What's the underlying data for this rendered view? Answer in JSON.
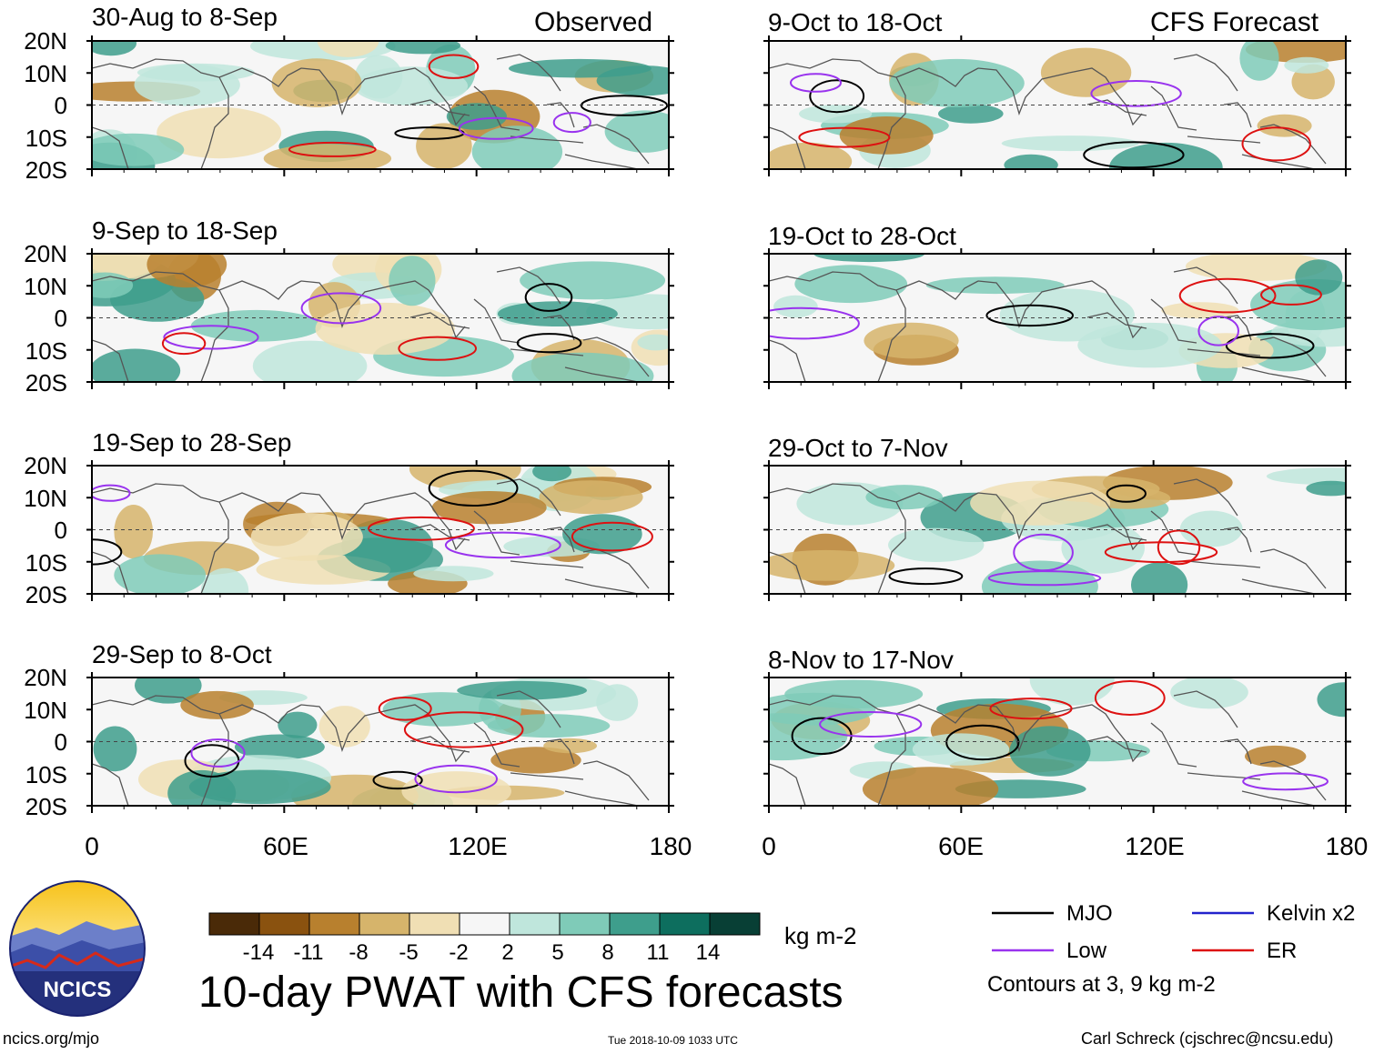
{
  "observed_label": "Observed",
  "forecast_label": "CFS Forecast",
  "panels": [
    {
      "title": "30-Aug to 8-Sep",
      "kind": "observed"
    },
    {
      "title": "9-Sep to 18-Sep",
      "kind": "observed"
    },
    {
      "title": "19-Sep to 28-Sep",
      "kind": "observed"
    },
    {
      "title": "29-Sep to 8-Oct",
      "kind": "observed"
    },
    {
      "title": "9-Oct to 18-Oct",
      "kind": "forecast"
    },
    {
      "title": "19-Oct to 28-Oct",
      "kind": "forecast"
    },
    {
      "title": "29-Oct to 7-Nov",
      "kind": "forecast"
    },
    {
      "title": "8-Nov to 17-Nov",
      "kind": "forecast"
    }
  ],
  "lat_labels": [
    "20N",
    "10N",
    "0",
    "10S",
    "20S"
  ],
  "lon_labels": [
    "0",
    "60E",
    "120E",
    "180"
  ],
  "colorbar": {
    "ticks": [
      "-14",
      "-11",
      "-8",
      "-5",
      "-2",
      "2",
      "5",
      "8",
      "11",
      "14"
    ],
    "colors": [
      "#4a2a08",
      "#8a520f",
      "#b8802e",
      "#d6b46b",
      "#f0dfb4",
      "#f6f6f6",
      "#bfe6dc",
      "#7fcbb8",
      "#3e9e8c",
      "#0d6e5e",
      "#083f35"
    ],
    "units": "kg m-2"
  },
  "title": "10-day PWAT with CFS forecasts",
  "legend": {
    "items": [
      {
        "label": "MJO",
        "color": "#000000"
      },
      {
        "label": "Kelvin x2",
        "color": "#2222cc"
      },
      {
        "label": "Low",
        "color": "#9933ee"
      },
      {
        "label": "ER",
        "color": "#dd1111"
      }
    ],
    "note": "Contours at 3, 9 kg m-2"
  },
  "logo_text": "NCICS",
  "footer": {
    "url": "ncics.org/mjo",
    "timestamp": "Tue 2018-10-09 1033 UTC",
    "author": "Carl Schreck (cjschrec@ncsu.edu)"
  }
}
